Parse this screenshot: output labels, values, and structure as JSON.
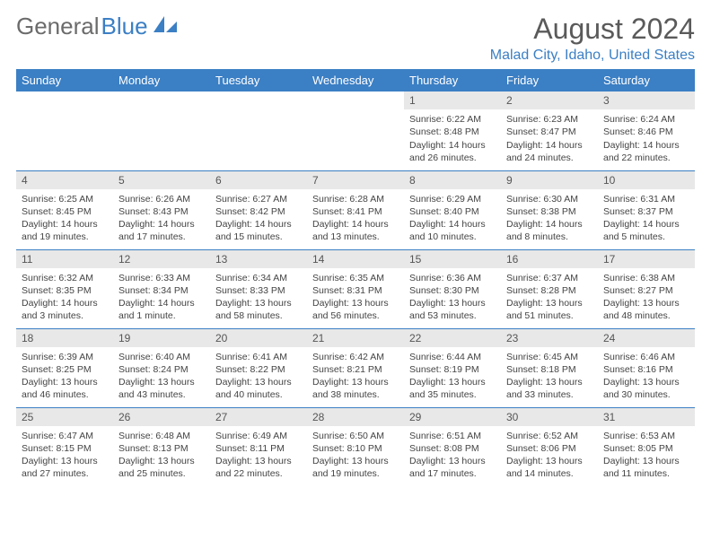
{
  "brand": {
    "part1": "General",
    "part2": "Blue"
  },
  "title": "August 2024",
  "location": "Malad City, Idaho, United States",
  "colors": {
    "header_bg": "#3b7fc4",
    "header_text": "#ffffff",
    "daynum_bg": "#e8e8e8",
    "row_border": "#3b7fc4",
    "title_color": "#5a5a5a",
    "location_color": "#3b7fc4",
    "body_text": "#444444"
  },
  "weekdays": [
    "Sunday",
    "Monday",
    "Tuesday",
    "Wednesday",
    "Thursday",
    "Friday",
    "Saturday"
  ],
  "weeks": [
    [
      {
        "n": "",
        "sr": "",
        "ss": "",
        "dl": ""
      },
      {
        "n": "",
        "sr": "",
        "ss": "",
        "dl": ""
      },
      {
        "n": "",
        "sr": "",
        "ss": "",
        "dl": ""
      },
      {
        "n": "",
        "sr": "",
        "ss": "",
        "dl": ""
      },
      {
        "n": "1",
        "sr": "Sunrise: 6:22 AM",
        "ss": "Sunset: 8:48 PM",
        "dl": "Daylight: 14 hours and 26 minutes."
      },
      {
        "n": "2",
        "sr": "Sunrise: 6:23 AM",
        "ss": "Sunset: 8:47 PM",
        "dl": "Daylight: 14 hours and 24 minutes."
      },
      {
        "n": "3",
        "sr": "Sunrise: 6:24 AM",
        "ss": "Sunset: 8:46 PM",
        "dl": "Daylight: 14 hours and 22 minutes."
      }
    ],
    [
      {
        "n": "4",
        "sr": "Sunrise: 6:25 AM",
        "ss": "Sunset: 8:45 PM",
        "dl": "Daylight: 14 hours and 19 minutes."
      },
      {
        "n": "5",
        "sr": "Sunrise: 6:26 AM",
        "ss": "Sunset: 8:43 PM",
        "dl": "Daylight: 14 hours and 17 minutes."
      },
      {
        "n": "6",
        "sr": "Sunrise: 6:27 AM",
        "ss": "Sunset: 8:42 PM",
        "dl": "Daylight: 14 hours and 15 minutes."
      },
      {
        "n": "7",
        "sr": "Sunrise: 6:28 AM",
        "ss": "Sunset: 8:41 PM",
        "dl": "Daylight: 14 hours and 13 minutes."
      },
      {
        "n": "8",
        "sr": "Sunrise: 6:29 AM",
        "ss": "Sunset: 8:40 PM",
        "dl": "Daylight: 14 hours and 10 minutes."
      },
      {
        "n": "9",
        "sr": "Sunrise: 6:30 AM",
        "ss": "Sunset: 8:38 PM",
        "dl": "Daylight: 14 hours and 8 minutes."
      },
      {
        "n": "10",
        "sr": "Sunrise: 6:31 AM",
        "ss": "Sunset: 8:37 PM",
        "dl": "Daylight: 14 hours and 5 minutes."
      }
    ],
    [
      {
        "n": "11",
        "sr": "Sunrise: 6:32 AM",
        "ss": "Sunset: 8:35 PM",
        "dl": "Daylight: 14 hours and 3 minutes."
      },
      {
        "n": "12",
        "sr": "Sunrise: 6:33 AM",
        "ss": "Sunset: 8:34 PM",
        "dl": "Daylight: 14 hours and 1 minute."
      },
      {
        "n": "13",
        "sr": "Sunrise: 6:34 AM",
        "ss": "Sunset: 8:33 PM",
        "dl": "Daylight: 13 hours and 58 minutes."
      },
      {
        "n": "14",
        "sr": "Sunrise: 6:35 AM",
        "ss": "Sunset: 8:31 PM",
        "dl": "Daylight: 13 hours and 56 minutes."
      },
      {
        "n": "15",
        "sr": "Sunrise: 6:36 AM",
        "ss": "Sunset: 8:30 PM",
        "dl": "Daylight: 13 hours and 53 minutes."
      },
      {
        "n": "16",
        "sr": "Sunrise: 6:37 AM",
        "ss": "Sunset: 8:28 PM",
        "dl": "Daylight: 13 hours and 51 minutes."
      },
      {
        "n": "17",
        "sr": "Sunrise: 6:38 AM",
        "ss": "Sunset: 8:27 PM",
        "dl": "Daylight: 13 hours and 48 minutes."
      }
    ],
    [
      {
        "n": "18",
        "sr": "Sunrise: 6:39 AM",
        "ss": "Sunset: 8:25 PM",
        "dl": "Daylight: 13 hours and 46 minutes."
      },
      {
        "n": "19",
        "sr": "Sunrise: 6:40 AM",
        "ss": "Sunset: 8:24 PM",
        "dl": "Daylight: 13 hours and 43 minutes."
      },
      {
        "n": "20",
        "sr": "Sunrise: 6:41 AM",
        "ss": "Sunset: 8:22 PM",
        "dl": "Daylight: 13 hours and 40 minutes."
      },
      {
        "n": "21",
        "sr": "Sunrise: 6:42 AM",
        "ss": "Sunset: 8:21 PM",
        "dl": "Daylight: 13 hours and 38 minutes."
      },
      {
        "n": "22",
        "sr": "Sunrise: 6:44 AM",
        "ss": "Sunset: 8:19 PM",
        "dl": "Daylight: 13 hours and 35 minutes."
      },
      {
        "n": "23",
        "sr": "Sunrise: 6:45 AM",
        "ss": "Sunset: 8:18 PM",
        "dl": "Daylight: 13 hours and 33 minutes."
      },
      {
        "n": "24",
        "sr": "Sunrise: 6:46 AM",
        "ss": "Sunset: 8:16 PM",
        "dl": "Daylight: 13 hours and 30 minutes."
      }
    ],
    [
      {
        "n": "25",
        "sr": "Sunrise: 6:47 AM",
        "ss": "Sunset: 8:15 PM",
        "dl": "Daylight: 13 hours and 27 minutes."
      },
      {
        "n": "26",
        "sr": "Sunrise: 6:48 AM",
        "ss": "Sunset: 8:13 PM",
        "dl": "Daylight: 13 hours and 25 minutes."
      },
      {
        "n": "27",
        "sr": "Sunrise: 6:49 AM",
        "ss": "Sunset: 8:11 PM",
        "dl": "Daylight: 13 hours and 22 minutes."
      },
      {
        "n": "28",
        "sr": "Sunrise: 6:50 AM",
        "ss": "Sunset: 8:10 PM",
        "dl": "Daylight: 13 hours and 19 minutes."
      },
      {
        "n": "29",
        "sr": "Sunrise: 6:51 AM",
        "ss": "Sunset: 8:08 PM",
        "dl": "Daylight: 13 hours and 17 minutes."
      },
      {
        "n": "30",
        "sr": "Sunrise: 6:52 AM",
        "ss": "Sunset: 8:06 PM",
        "dl": "Daylight: 13 hours and 14 minutes."
      },
      {
        "n": "31",
        "sr": "Sunrise: 6:53 AM",
        "ss": "Sunset: 8:05 PM",
        "dl": "Daylight: 13 hours and 11 minutes."
      }
    ]
  ]
}
